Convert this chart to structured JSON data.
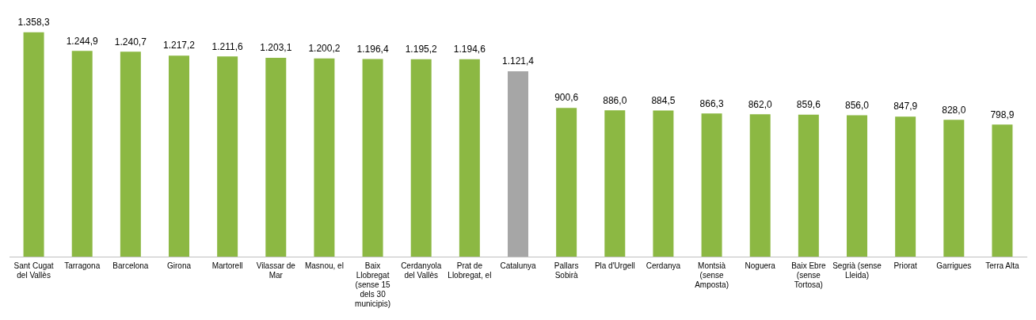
{
  "chart_data": {
    "type": "bar",
    "categories": [
      "Sant Cugat del Vallès",
      "Tarragona",
      "Barcelona",
      "Girona",
      "Martorell",
      "Vilassar de Mar",
      "Masnou, el",
      "Baix Llobregat (sense 15 dels 30 municipis)",
      "Cerdanyola del Vallès",
      "Prat de Llobregat, el",
      "Catalunya",
      "Pallars Sobirà",
      "Pla d'Urgell",
      "Cerdanya",
      "Montsià (sense Amposta)",
      "Noguera",
      "Baix Ebre (sense Tortosa)",
      "Segrià (sense Lleida)",
      "Priorat",
      "Garrigues",
      "Terra Alta"
    ],
    "values": [
      1358.3,
      1244.9,
      1240.7,
      1217.2,
      1211.6,
      1203.1,
      1200.2,
      1196.4,
      1195.2,
      1194.6,
      1121.4,
      900.6,
      886.0,
      884.5,
      866.3,
      862.0,
      859.6,
      856.0,
      847.9,
      828.0,
      798.9
    ],
    "colors": [
      "#8cb843",
      "#8cb843",
      "#8cb843",
      "#8cb843",
      "#8cb843",
      "#8cb843",
      "#8cb843",
      "#8cb843",
      "#8cb843",
      "#8cb843",
      "#a6a6a6",
      "#8cb843",
      "#8cb843",
      "#8cb843",
      "#8cb843",
      "#8cb843",
      "#8cb843",
      "#8cb843",
      "#8cb843",
      "#8cb843",
      "#8cb843"
    ],
    "value_labels": [
      "1.358,3",
      "1.244,9",
      "1.240,7",
      "1.217,2",
      "1.211,6",
      "1.203,1",
      "1.200,2",
      "1.196,4",
      "1.195,2",
      "1.194,6",
      "1.121,4",
      "900,6",
      "886,0",
      "884,5",
      "866,3",
      "862,0",
      "859,6",
      "856,0",
      "847,9",
      "828,0",
      "798,9"
    ],
    "grid": false,
    "legend": false
  }
}
